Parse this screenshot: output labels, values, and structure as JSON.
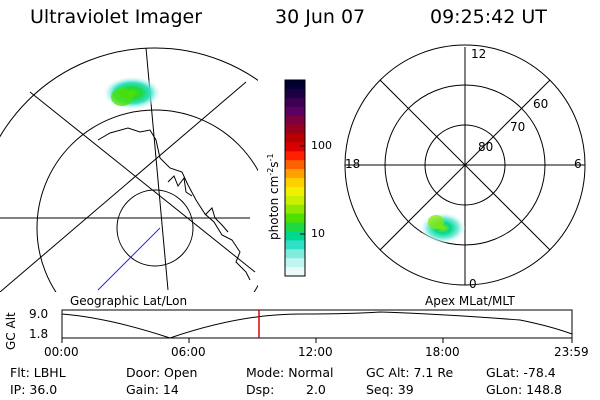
{
  "header": {
    "instrument": "Ultraviolet Imager",
    "date": "30 Jun 07",
    "time": "09:25:42 UT"
  },
  "panels": {
    "left_label": "Geographic Lat/Lon",
    "right_label": "Apex MLat/MLT"
  },
  "polar_labels": {
    "top": "12",
    "bottom": "0",
    "left": "18",
    "right": "6",
    "ring_60": "60",
    "ring_70": "70",
    "ring_80": "80"
  },
  "colorbar": {
    "unit_main": "photon cm",
    "unit_exp1": "-2",
    "unit_mid": "s",
    "unit_exp2": "-1",
    "tick_100": "100",
    "tick_10": "10",
    "colors": [
      "#000033",
      "#1a0040",
      "#3c0050",
      "#5a0060",
      "#7a0040",
      "#990020",
      "#b80000",
      "#d80000",
      "#ff2000",
      "#ff6000",
      "#ffa000",
      "#ffd000",
      "#f0f000",
      "#c8f000",
      "#90e800",
      "#50e000",
      "#20d840",
      "#00d890",
      "#30e0c8",
      "#80ecdc",
      "#c0f4ee",
      "#e8fbf8"
    ]
  },
  "timeline": {
    "axis_label": "GC Alt",
    "y_top": "9.0",
    "y_bottom": "1.8",
    "ticks": [
      "00:00",
      "06:00",
      "12:00",
      "18:00",
      "23:59"
    ],
    "marker_color": "#dd0000"
  },
  "footer": {
    "flt": "Flt: LBHL",
    "door": "Door: Open",
    "mode": "Mode: Normal",
    "gc_alt": "GC Alt: 7.1 Re",
    "glat": "GLat: -78.4",
    "ip": "IP: 36.0",
    "gain": "Gain: 14",
    "dsp_label": "Dsp:",
    "dsp_value": "2.0",
    "seq": "Seq: 39",
    "glon": "GLon: 148.8"
  }
}
